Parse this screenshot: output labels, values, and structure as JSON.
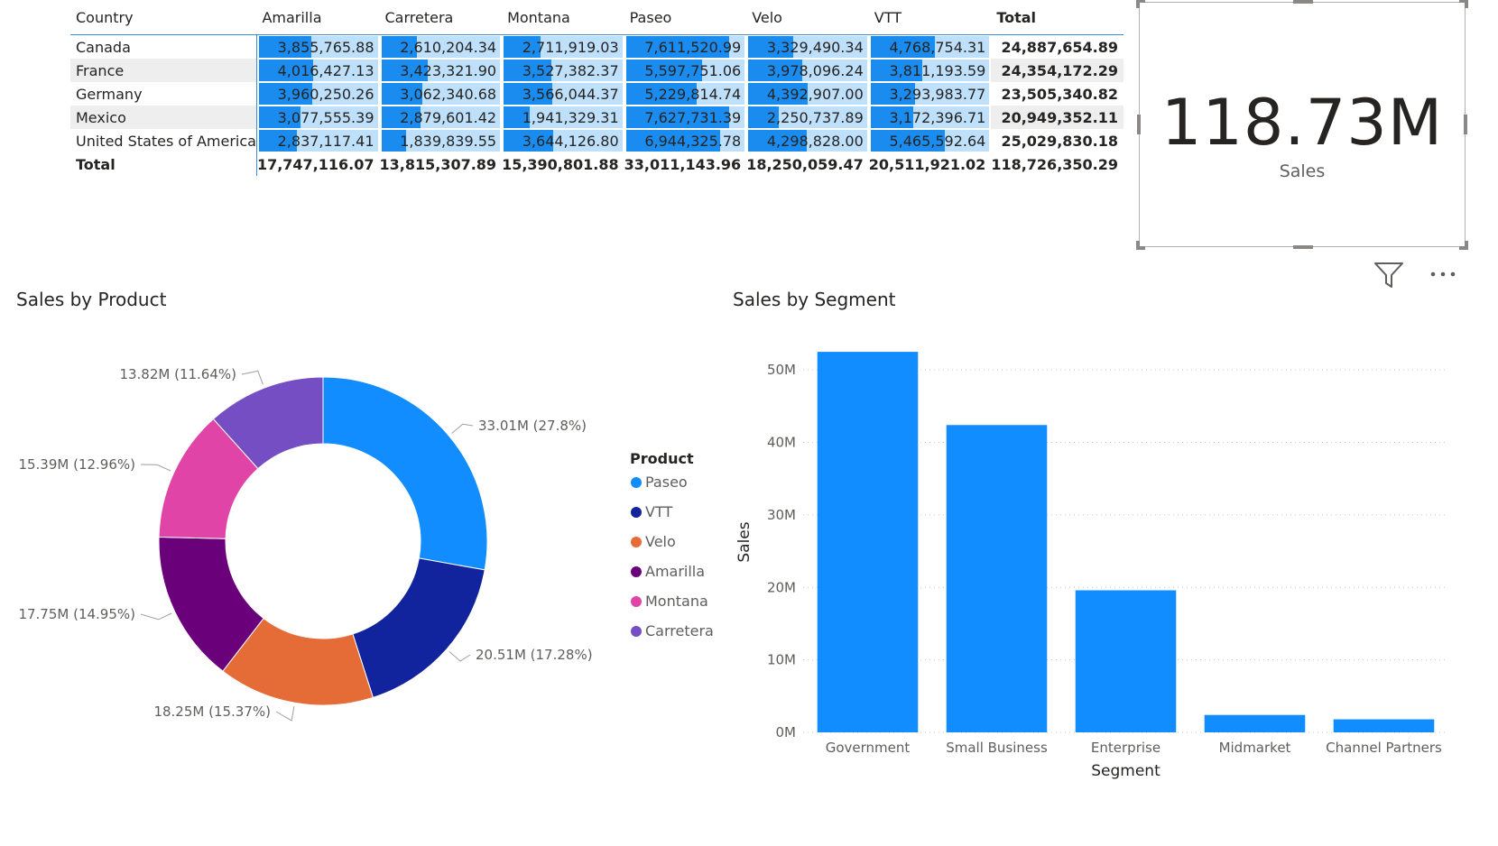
{
  "matrix": {
    "header_country": "Country",
    "columns": [
      "Amarilla",
      "Carretera",
      "Montana",
      "Paseo",
      "Velo",
      "VTT"
    ],
    "header_total": "Total",
    "rows": [
      {
        "country": "Canada",
        "values": [
          "3,855,765.88",
          "2,610,204.34",
          "2,711,919.03",
          "7,611,520.99",
          "3,329,490.34",
          "4,768,754.31"
        ],
        "total": "24,887,654.89",
        "nums": [
          3855765.88,
          2610204.34,
          2711919.03,
          7611520.99,
          3329490.34,
          4768754.31
        ]
      },
      {
        "country": "France",
        "values": [
          "4,016,427.13",
          "3,423,321.90",
          "3,527,382.37",
          "5,597,751.06",
          "3,978,096.24",
          "3,811,193.59"
        ],
        "total": "24,354,172.29",
        "nums": [
          4016427.13,
          3423321.9,
          3527382.37,
          5597751.06,
          3978096.24,
          3811193.59
        ]
      },
      {
        "country": "Germany",
        "values": [
          "3,960,250.26",
          "3,062,340.68",
          "3,566,044.37",
          "5,229,814.74",
          "4,392,907.00",
          "3,293,983.77"
        ],
        "total": "23,505,340.82",
        "nums": [
          3960250.26,
          3062340.68,
          3566044.37,
          5229814.74,
          4392907.0,
          3293983.77
        ]
      },
      {
        "country": "Mexico",
        "values": [
          "3,077,555.39",
          "2,879,601.42",
          "1,941,329.31",
          "7,627,731.39",
          "2,250,737.89",
          "3,172,396.71"
        ],
        "total": "20,949,352.11",
        "nums": [
          3077555.39,
          2879601.42,
          1941329.31,
          7627731.39,
          2250737.89,
          3172396.71
        ]
      },
      {
        "country": "United States of America",
        "values": [
          "2,837,117.41",
          "1,839,839.55",
          "3,644,126.80",
          "6,944,325.78",
          "4,298,828.00",
          "5,465,592.64"
        ],
        "total": "25,029,830.18",
        "nums": [
          2837117.41,
          1839839.55,
          3644126.8,
          6944325.78,
          4298828.0,
          5465592.64
        ]
      }
    ],
    "total_row": {
      "label": "Total",
      "values": [
        "17,747,116.07",
        "13,815,307.89",
        "15,390,801.88",
        "33,011,143.96",
        "18,250,059.47",
        "20,511,921.02"
      ],
      "total": "118,726,350.29"
    }
  },
  "card": {
    "value": "118.73M",
    "label": "Sales"
  },
  "chart_data": [
    {
      "type": "pie",
      "title": "Sales by Product",
      "legend_title": "Product",
      "legend_position": "right",
      "slices": [
        {
          "name": "Paseo",
          "value": 33.01,
          "label": "33.01M (27.8%)",
          "color": "#118DFF"
        },
        {
          "name": "VTT",
          "value": 20.51,
          "label": "20.51M (17.28%)",
          "color": "#12239E"
        },
        {
          "name": "Velo",
          "value": 18.25,
          "label": "18.25M (15.37%)",
          "color": "#E66C37"
        },
        {
          "name": "Amarilla",
          "value": 17.75,
          "label": "17.75M (14.95%)",
          "color": "#6B007B"
        },
        {
          "name": "Montana",
          "value": 15.39,
          "label": "15.39M (12.96%)",
          "color": "#E044A7"
        },
        {
          "name": "Carretera",
          "value": 13.82,
          "label": "13.82M (11.64%)",
          "color": "#744EC2"
        }
      ]
    },
    {
      "type": "bar",
      "title": "Sales by Segment",
      "xlabel": "Segment",
      "ylabel": "Sales",
      "categories": [
        "Government",
        "Small Business",
        "Enterprise",
        "Midmarket",
        "Channel Partners"
      ],
      "values": [
        52.5,
        42.4,
        19.6,
        2.4,
        1.8
      ],
      "yticks": [
        "0M",
        "10M",
        "20M",
        "30M",
        "40M",
        "50M"
      ],
      "ylim": [
        0,
        55
      ],
      "grid": true,
      "color": "#118DFF"
    }
  ]
}
